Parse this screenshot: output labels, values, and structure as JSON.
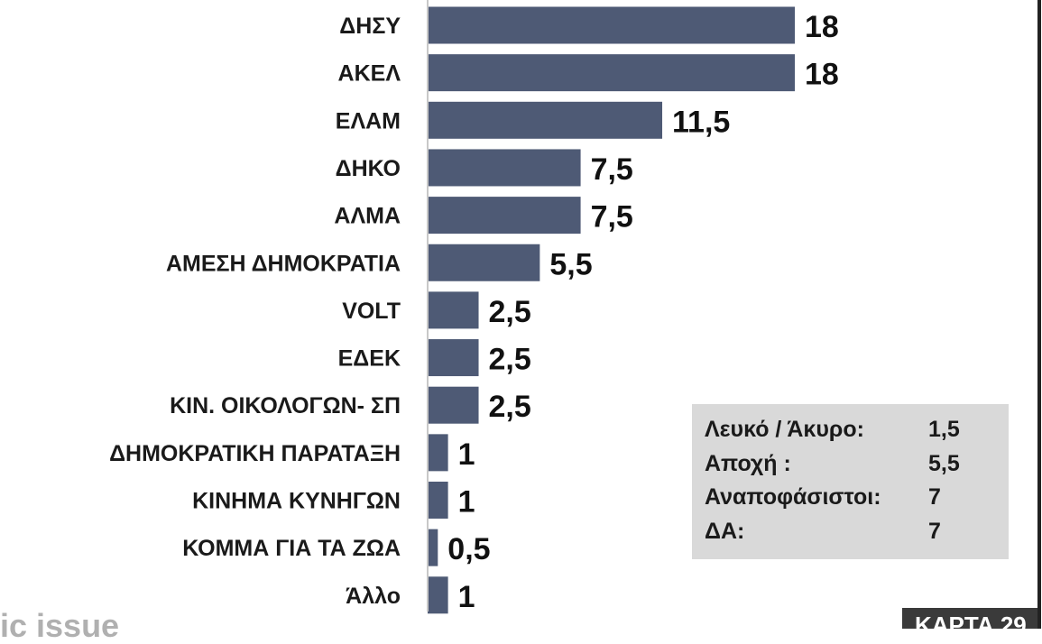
{
  "chart_data": {
    "type": "bar",
    "orientation": "horizontal",
    "categories": [
      "ΔΗΣΥ",
      "ΑΚΕΛ",
      "ΕΛΑΜ",
      "ΔΗΚΟ",
      "ΑΛΜΑ",
      "ΑΜΕΣΗ ΔΗΜΟΚΡΑΤΙΑ",
      "VOLT",
      "ΕΔΕΚ",
      "ΚΙΝ. ΟΙΚΟΛΟΓΩΝ- ΣΠ",
      "ΔΗΜΟΚΡΑΤΙΚΗ ΠΑΡΑΤΑΞΗ",
      "ΚΙΝΗΜΑ ΚΥΝΗΓΩΝ",
      "ΚΟΜΜΑ ΓΙΑ ΤΑ ΖΩΑ",
      "Άλλο"
    ],
    "values": [
      18,
      18,
      11.5,
      7.5,
      7.5,
      5.5,
      2.5,
      2.5,
      2.5,
      1,
      1,
      0.5,
      1
    ],
    "value_labels": [
      "18",
      "18",
      "11,5",
      "7,5",
      "7,5",
      "5,5",
      "2,5",
      "2,5",
      "2,5",
      "1",
      "1",
      "0,5",
      "1"
    ],
    "xlim": [
      0,
      18
    ],
    "grid": false,
    "bar_color": "#4e5a75"
  },
  "info_box": {
    "rows": [
      {
        "label": "Λευκό / Άκυρο:",
        "value": "1,5"
      },
      {
        "label": "Αποχή :",
        "value": "5,5"
      },
      {
        "label": "Αναποφάσιστοι:",
        "value": "7"
      },
      {
        "label": "ΔΑ:",
        "value": "7"
      }
    ]
  },
  "footer": {
    "left_text": "ic issue",
    "card_label": "ΚΑΡΤΑ 29"
  },
  "colors": {
    "background": "#ffffff",
    "info_box_bg": "#d9d9d9",
    "badge_bg": "#3a3a3a"
  }
}
